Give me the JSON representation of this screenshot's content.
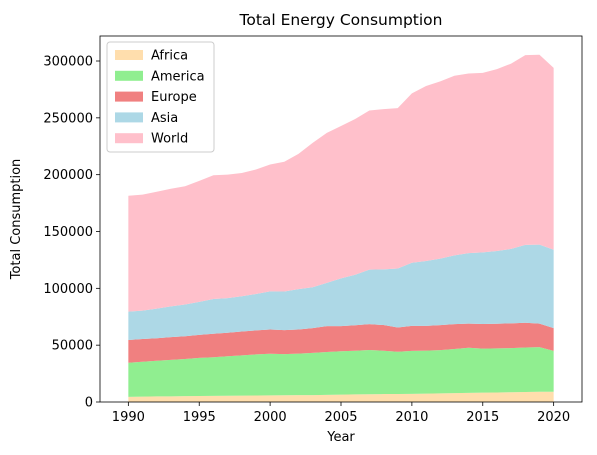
{
  "chart_data": {
    "type": "area",
    "stacked": true,
    "title": "Total Energy Consumption",
    "xlabel": "Year",
    "ylabel": "Total Consumption",
    "xlim": [
      1988,
      2022
    ],
    "ylim": [
      0,
      322000
    ],
    "xticks": [
      1990,
      1995,
      2000,
      2005,
      2010,
      2015,
      2020
    ],
    "yticks": [
      0,
      50000,
      100000,
      150000,
      200000,
      250000,
      300000
    ],
    "legend_position": "top-left",
    "x": [
      1990,
      1991,
      1992,
      1993,
      1994,
      1995,
      1996,
      1997,
      1998,
      1999,
      2000,
      2001,
      2002,
      2003,
      2004,
      2005,
      2006,
      2007,
      2008,
      2009,
      2010,
      2011,
      2012,
      2013,
      2014,
      2015,
      2016,
      2017,
      2018,
      2019,
      2020
    ],
    "series": [
      {
        "name": "Africa",
        "color": "#ffdead",
        "values": [
          4500,
          4700,
          4900,
          5000,
          5200,
          5300,
          5400,
          5500,
          5600,
          5700,
          5800,
          5900,
          6000,
          6100,
          6300,
          6500,
          6700,
          6800,
          7000,
          7000,
          7200,
          7400,
          7600,
          7800,
          8000,
          8200,
          8400,
          8600,
          8800,
          9000,
          9000
        ]
      },
      {
        "name": "America",
        "color": "#90ee90",
        "values": [
          30000,
          30700,
          31400,
          32100,
          32600,
          33500,
          34000,
          34700,
          35400,
          36200,
          36700,
          36200,
          36600,
          37100,
          37700,
          38100,
          38400,
          38900,
          38100,
          37200,
          37800,
          37800,
          38000,
          38800,
          39700,
          38800,
          38800,
          38800,
          39200,
          39300,
          36000
        ]
      },
      {
        "name": "Europe",
        "color": "#f08080",
        "values": [
          20000,
          20000,
          19800,
          20000,
          20000,
          20300,
          20700,
          20700,
          21000,
          21100,
          21300,
          21100,
          21200,
          21800,
          22800,
          22200,
          22400,
          22800,
          22600,
          21300,
          22000,
          21800,
          22000,
          21900,
          21300,
          21600,
          21700,
          21800,
          21700,
          20700,
          20000
        ]
      },
      {
        "name": "Asia",
        "color": "#add8e6",
        "values": [
          25000,
          25000,
          26000,
          27000,
          28000,
          29000,
          30500,
          30500,
          31000,
          32000,
          33500,
          34000,
          35500,
          36000,
          38000,
          42000,
          44500,
          48000,
          49000,
          52000,
          55500,
          57000,
          58500,
          60500,
          62000,
          63000,
          64000,
          65500,
          68500,
          69500,
          69000
        ]
      },
      {
        "name": "World",
        "color": "#ffc0cb",
        "values": [
          102000,
          102000,
          102900,
          103500,
          104000,
          106400,
          108900,
          108600,
          108500,
          109500,
          111700,
          114200,
          119000,
          127000,
          132000,
          134000,
          137000,
          140000,
          141000,
          141000,
          149000,
          154000,
          156000,
          158000,
          158000,
          158000,
          160000,
          163000,
          167000,
          167000,
          160000
        ]
      }
    ]
  }
}
